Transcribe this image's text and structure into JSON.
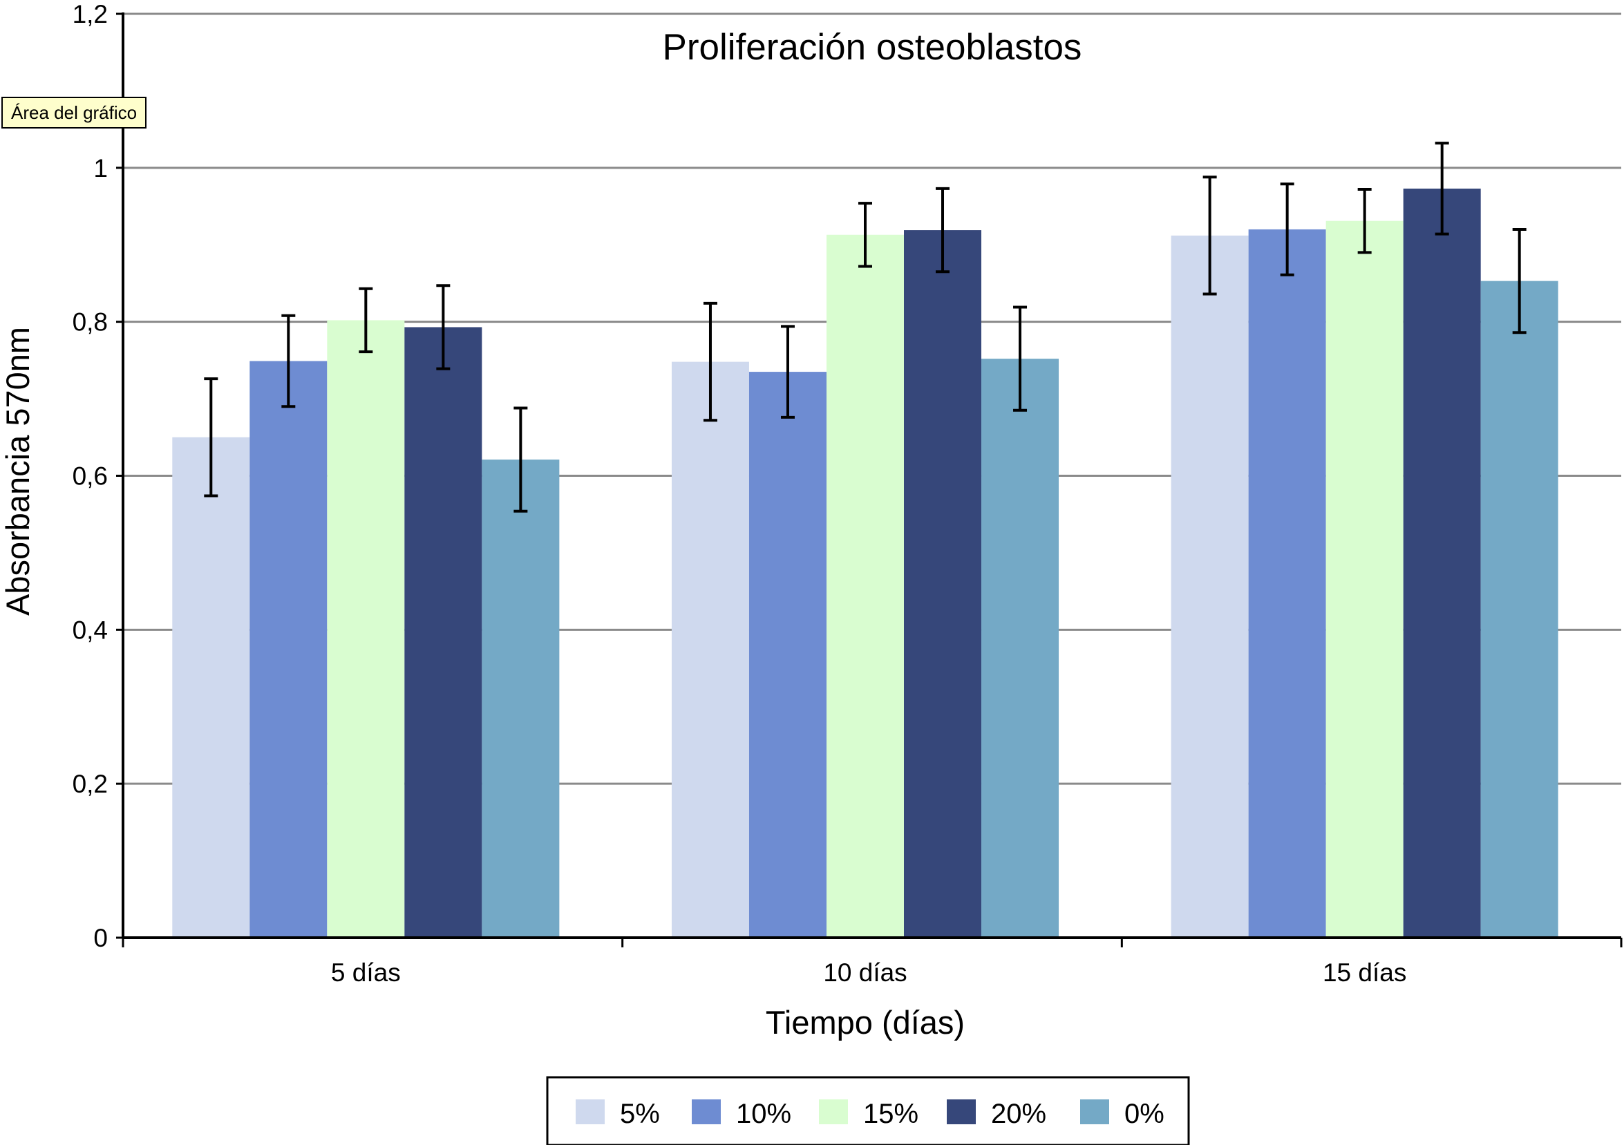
{
  "chart_data": {
    "type": "bar",
    "title": "Proliferación osteoblastos",
    "xlabel": "Tiempo (días)",
    "ylabel": "Absorbancia 570nm",
    "categories": [
      "5 días",
      "10 días",
      "15 días"
    ],
    "ylim": [
      0,
      1.2
    ],
    "yticks": [
      0,
      0.2,
      0.4,
      0.6,
      0.8,
      1,
      1.2
    ],
    "ytick_labels": [
      "0",
      "0,2",
      "0,4",
      "0,6",
      "0,8",
      "1",
      "1,2"
    ],
    "grid": true,
    "legend_position": "bottom",
    "series": [
      {
        "name": "5%",
        "color": "#cfd9ee",
        "values": [
          0.65,
          0.748,
          0.912
        ],
        "errors": [
          0.076,
          0.076,
          0.076
        ]
      },
      {
        "name": "10%",
        "color": "#6e8cd2",
        "values": [
          0.749,
          0.735,
          0.92
        ],
        "errors": [
          0.059,
          0.059,
          0.059
        ]
      },
      {
        "name": "15%",
        "color": "#d9fdd0",
        "values": [
          0.802,
          0.913,
          0.931
        ],
        "errors": [
          0.041,
          0.041,
          0.041
        ]
      },
      {
        "name": "20%",
        "color": "#36477a",
        "values": [
          0.793,
          0.919,
          0.973
        ],
        "errors": [
          0.054,
          0.054,
          0.059
        ]
      },
      {
        "name": "0%",
        "color": "#74a9c6",
        "values": [
          0.621,
          0.752,
          0.853
        ],
        "errors": [
          0.067,
          0.067,
          0.067
        ]
      }
    ]
  },
  "tooltip": {
    "text": "Área del gráfico"
  }
}
